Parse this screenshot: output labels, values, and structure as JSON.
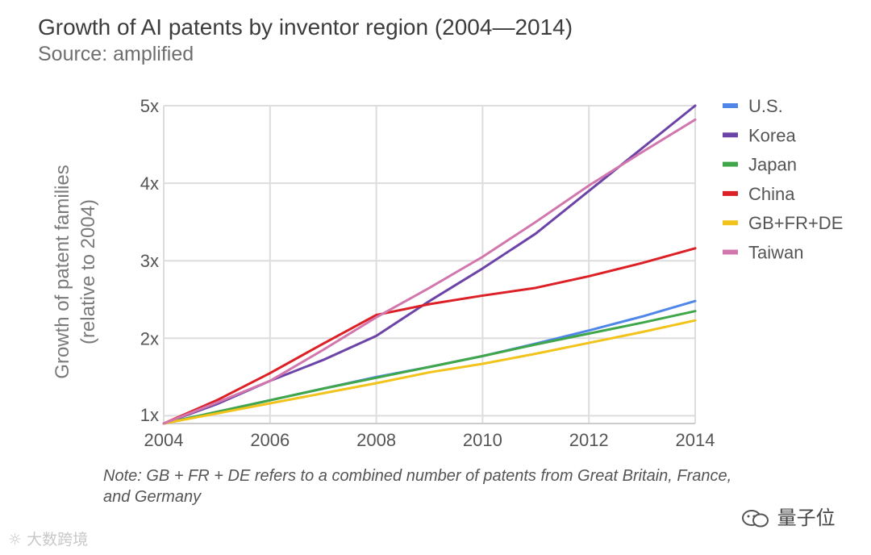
{
  "title": "Growth of AI patents by inventor region (2004—2014)",
  "subtitle": "Source: amplified",
  "note": "Note: GB + FR + DE refers to a combined number of patents from Great Britain, France, and Germany",
  "watermark_right": "量子位",
  "watermark_left": "大数跨境",
  "chart_data": {
    "type": "line",
    "title": "Growth of AI patents by inventor region (2004—2014)",
    "xlabel": "",
    "ylabel": "Growth of patent families",
    "ylabel_line2": "(relative to 2004)",
    "x": [
      2004,
      2005,
      2006,
      2007,
      2008,
      2009,
      2010,
      2011,
      2012,
      2013,
      2014
    ],
    "xticks": [
      "2004",
      "2006",
      "2008",
      "2010",
      "2012",
      "2014"
    ],
    "xtick_values": [
      2004,
      2006,
      2008,
      2010,
      2012,
      2014
    ],
    "yticks": [
      "1x",
      "2x",
      "3x",
      "4x",
      "5x"
    ],
    "ytick_values": [
      1,
      2,
      3,
      4,
      5
    ],
    "xlim": [
      2004,
      2014
    ],
    "ylim": [
      0.9,
      5
    ],
    "grid": true,
    "legend_position": "right",
    "series": [
      {
        "name": "U.S.",
        "color": "#4f86e8",
        "values": [
          0.9,
          1.05,
          1.2,
          1.35,
          1.5,
          1.63,
          1.77,
          1.93,
          2.1,
          2.28,
          2.48
        ]
      },
      {
        "name": "Korea",
        "color": "#6c44a8",
        "values": [
          0.9,
          1.15,
          1.45,
          1.72,
          2.03,
          2.48,
          2.9,
          3.35,
          3.9,
          4.45,
          5.0
        ]
      },
      {
        "name": "Japan",
        "color": "#3fa64a",
        "values": [
          0.9,
          1.05,
          1.2,
          1.35,
          1.49,
          1.63,
          1.77,
          1.92,
          2.06,
          2.2,
          2.35
        ]
      },
      {
        "name": "China",
        "color": "#dd1f26",
        "values": [
          0.9,
          1.2,
          1.55,
          1.93,
          2.3,
          2.44,
          2.55,
          2.65,
          2.8,
          2.97,
          3.16
        ]
      },
      {
        "name": "GB+FR+DE",
        "color": "#f2c31a",
        "values": [
          0.9,
          1.03,
          1.16,
          1.29,
          1.42,
          1.56,
          1.67,
          1.8,
          1.94,
          2.08,
          2.23
        ]
      },
      {
        "name": "Taiwan",
        "color": "#d277ad",
        "values": [
          0.9,
          1.17,
          1.45,
          1.85,
          2.27,
          2.65,
          3.05,
          3.5,
          3.97,
          4.4,
          4.82
        ]
      }
    ]
  }
}
